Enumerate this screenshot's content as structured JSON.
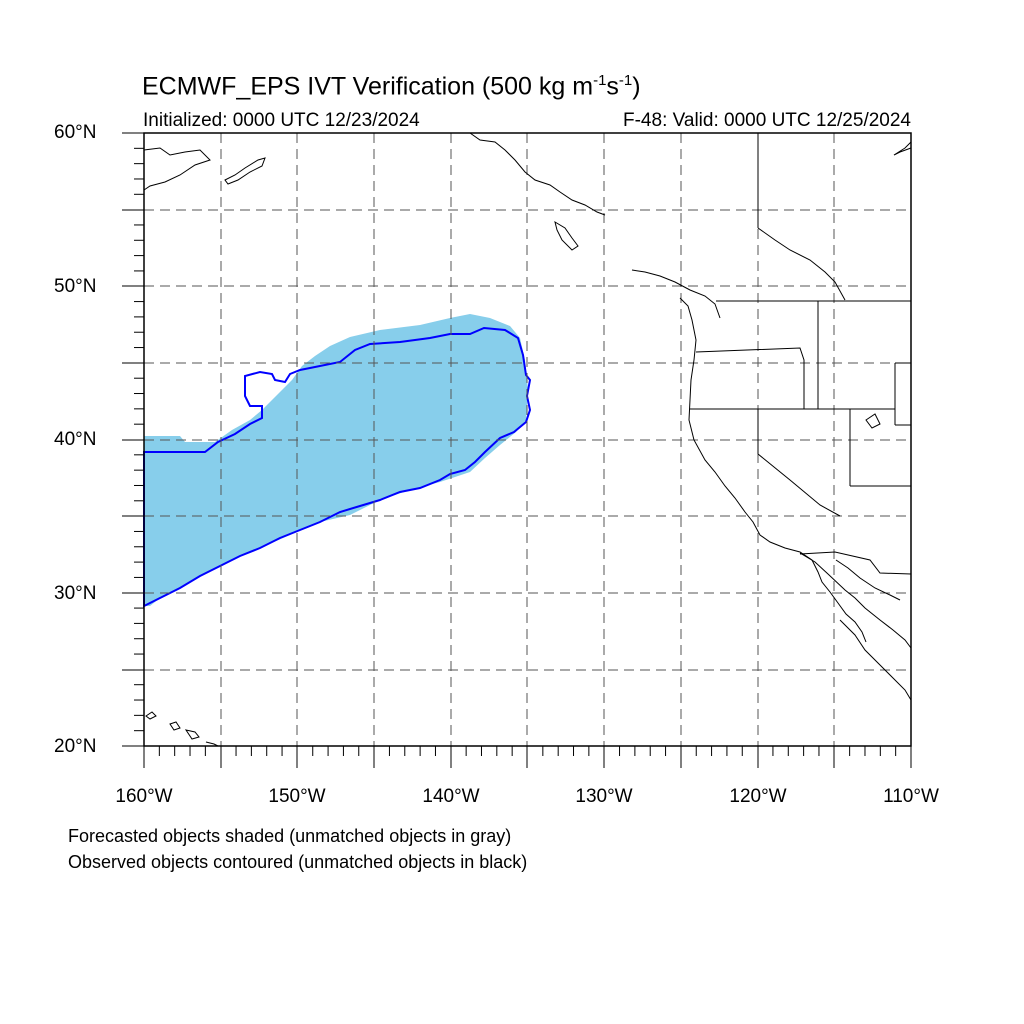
{
  "title": {
    "prefix": "ECMWF_EPS IVT Verification (500 kg m",
    "exp1": "-1",
    "mid": "s",
    "exp2": "-1",
    "suffix": ")"
  },
  "subtitle_left": "Initialized: 0000 UTC 12/23/2024",
  "subtitle_right": "F-48: Valid: 0000 UTC 12/25/2024",
  "lat_labels": [
    "60°N",
    "50°N",
    "40°N",
    "30°N",
    "20°N"
  ],
  "lon_labels": [
    "160°W",
    "150°W",
    "140°W",
    "130°W",
    "120°W",
    "110°W"
  ],
  "footer": {
    "line1": "Forecasted objects shaded (unmatched objects in gray)",
    "line2": "Observed objects contoured (unmatched objects in black)"
  },
  "map": {
    "lon_range": [
      -160,
      -110
    ],
    "lat_range": [
      20,
      60
    ],
    "forecast_fill_color": "#87ceeb",
    "observed_contour_color": "#0000ff",
    "grid_style": "dashed"
  }
}
